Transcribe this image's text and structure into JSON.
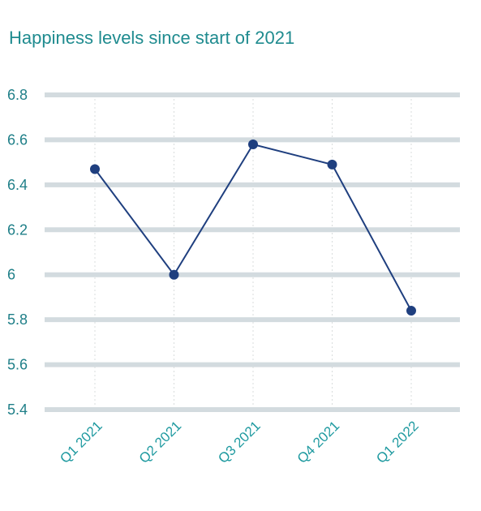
{
  "chart_data": {
    "type": "line",
    "title": "Happiness levels since start of 2021",
    "categories": [
      "Q1 2021",
      "Q2 2021",
      "Q3 2021",
      "Q4 2021",
      "Q1 2022"
    ],
    "series": [
      {
        "values": [
          6.47,
          6.0,
          6.58,
          6.49,
          5.84
        ]
      }
    ],
    "yticks": [
      "6.8",
      "6.6",
      "6.4",
      "6.2",
      "6",
      "5.8",
      "5.6",
      "5.4"
    ],
    "ylim": [
      5.4,
      6.8
    ],
    "xlabel": "",
    "ylabel": "",
    "grid": true,
    "colors": {
      "title": "#1f8b8f",
      "line": "#1f3f7f",
      "grid": "#d3dbdf",
      "vgrid": "#d8dcdc",
      "ytick": "#1f7f88",
      "xtick": "#1f9aa0"
    }
  }
}
